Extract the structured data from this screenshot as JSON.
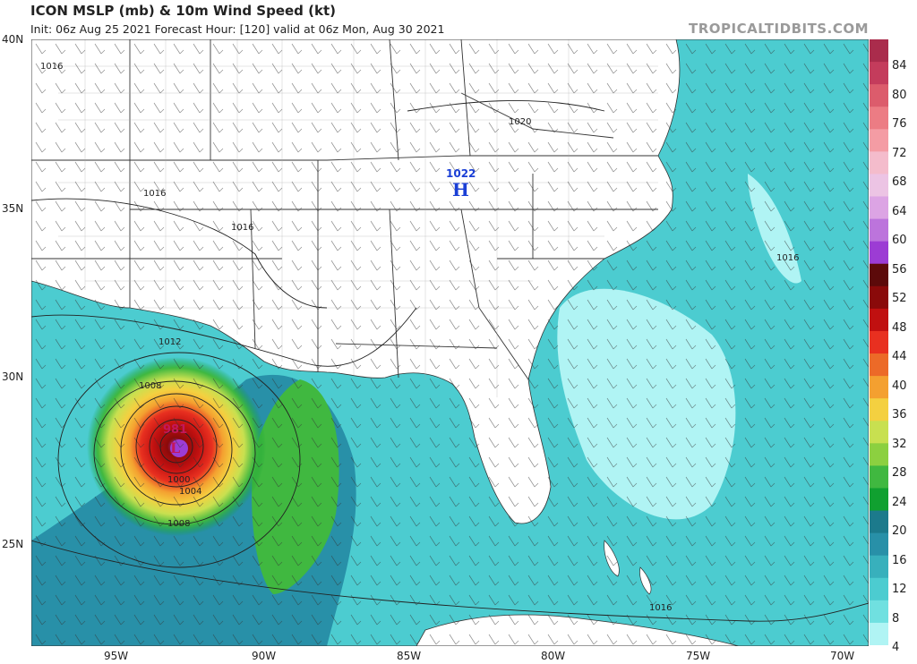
{
  "header": {
    "title": "ICON MSLP (mb) & 10m Wind Speed (kt)",
    "subtitle": "Init: 06z Aug 25 2021   Forecast Hour: [120]   valid at 06z Mon, Aug 30 2021",
    "brand": "TROPICALTIDBITS.COM"
  },
  "axes": {
    "lat_labels": [
      "40N",
      "35N",
      "30N",
      "25N"
    ],
    "lon_labels": [
      "95W",
      "90W",
      "85W",
      "80W",
      "75W",
      "70W"
    ]
  },
  "map": {
    "land_color": "#ffffff",
    "border_color": "#333333",
    "isobar_color": "#222222",
    "pressure_labels": [
      "1016",
      "1020",
      "1016",
      "1016",
      "1012",
      "1008",
      "1000",
      "1004",
      "1008",
      "1016",
      "1016"
    ],
    "high": {
      "value": "1022",
      "letter": "H",
      "color": "#1a3fd6"
    },
    "low": {
      "value": "981",
      "letter": "L",
      "color": "#c2185b"
    }
  },
  "colorbar": {
    "labels": [
      "84",
      "80",
      "76",
      "72",
      "68",
      "64",
      "60",
      "56",
      "52",
      "48",
      "44",
      "40",
      "36",
      "32",
      "28",
      "24",
      "20",
      "16",
      "12",
      "8",
      "4"
    ],
    "colors": [
      "#aa2c4c",
      "#c43c5c",
      "#dc5c6c",
      "#ec7c84",
      "#f49ca4",
      "#f4bccc",
      "#ecc4e4",
      "#dca4e4",
      "#bc74dc",
      "#9c3cd4",
      "#5c0a0a",
      "#8a0a0a",
      "#c01010",
      "#e83020",
      "#ec6a28",
      "#f4a030",
      "#f4d040",
      "#c8e050",
      "#8cd040",
      "#40b840",
      "#10a030",
      "#1c7a8c",
      "#2890a8",
      "#38b0bc",
      "#4cccd0",
      "#70e0e0",
      "#b0f4f4"
    ]
  }
}
